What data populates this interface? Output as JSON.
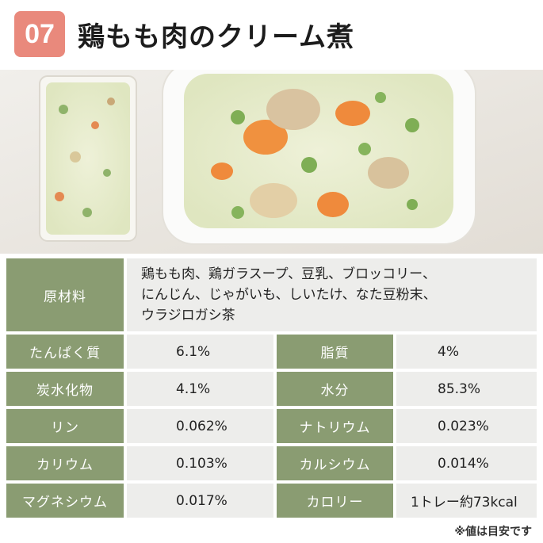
{
  "header": {
    "number": "07",
    "title": "鶏もも肉のクリーム煮"
  },
  "ingredients": {
    "label": "原材料",
    "lines": [
      "鶏もも肉、鶏ガラスープ、豆乳、ブロッコリー、",
      "にんじん、じゃがいも、しいたけ、なた豆粉末、",
      "ウラジロガシ茶"
    ]
  },
  "nutrition": [
    {
      "left_label": "たんぱく質",
      "left_value": "6.1%",
      "right_label": "脂質",
      "right_value": "4%"
    },
    {
      "left_label": "炭水化物",
      "left_value": "4.1%",
      "right_label": "水分",
      "right_value": "85.3%"
    },
    {
      "left_label": "リン",
      "left_value": "0.062%",
      "right_label": "ナトリウム",
      "right_value": "0.023%"
    },
    {
      "left_label": "カリウム",
      "left_value": "0.103%",
      "right_label": "カルシウム",
      "right_value": "0.014%"
    },
    {
      "left_label": "マグネシウム",
      "left_value": "0.017%",
      "right_label": "カロリー",
      "right_value": "1トレー約73kcal"
    }
  ],
  "footnote": "※値は目安です",
  "colors": {
    "badge": "#e9897c",
    "label_bg": "#8a9c72",
    "value_bg": "#ededeb"
  }
}
